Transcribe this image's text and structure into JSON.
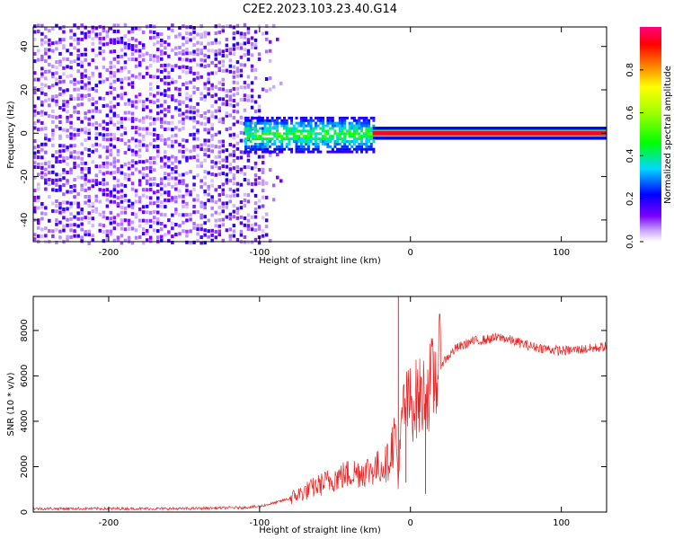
{
  "figure": {
    "title": "C2E2.2023.103.23.40.G14"
  },
  "chart_data": [
    {
      "type": "heatmap",
      "xlabel": "Height of straight line (km)",
      "ylabel": "Frequency (Hz)",
      "xlim": [
        -250,
        130
      ],
      "ylim": [
        -50,
        49
      ],
      "x_ticks": [
        -200,
        -100,
        0,
        100
      ],
      "y_ticks": [
        -40,
        -20,
        0,
        20,
        40
      ],
      "x_tick_labels": [
        "-200",
        "-100",
        "0",
        "100"
      ],
      "y_tick_labels": [
        "-40",
        "-20",
        "0",
        "20",
        "40"
      ],
      "description_regions": [
        {
          "x_range": [
            -250,
            -100
          ],
          "freq_range": [
            -50,
            49
          ],
          "amplitude": [
            0.05,
            0.2
          ]
        },
        {
          "x_range": [
            -110,
            -25
          ],
          "freq_range": [
            -8,
            8
          ],
          "amplitude": [
            0.15,
            0.5
          ]
        },
        {
          "x_range": [
            -25,
            130
          ],
          "freq_range": [
            -1,
            1
          ],
          "amplitude": [
            0.85,
            0.95
          ]
        }
      ],
      "colorbar": {
        "label": "Normalized spectral amplitude",
        "range": [
          0,
          1
        ],
        "ticks": [
          0.0,
          0.2,
          0.4,
          0.6,
          0.8
        ],
        "tick_labels": [
          "0.0",
          "0.2",
          "0.4",
          "0.6",
          "0.8"
        ],
        "colors": [
          "#ffffff",
          "#7b00ff",
          "#0000ff",
          "#00d9ff",
          "#00ff00",
          "#ffff00",
          "#ff8000",
          "#ff0000",
          "#ff0080"
        ]
      }
    },
    {
      "type": "line",
      "xlabel": "Height of straight line (km)",
      "ylabel": "SNR (10 * v/v)",
      "xlim": [
        -250,
        130
      ],
      "ylim": [
        0,
        9500
      ],
      "x_ticks": [
        -200,
        -100,
        0,
        100
      ],
      "y_ticks": [
        0,
        2000,
        4000,
        6000,
        8000
      ],
      "x_tick_labels": [
        "-200",
        "-100",
        "0",
        "100"
      ],
      "y_tick_labels": [
        "0",
        "2000",
        "4000",
        "6000",
        "8000"
      ],
      "color": "#ee2222",
      "series": [
        {
          "x": [
            -250,
            -200,
            -150,
            -110,
            -100,
            -90,
            -80,
            -70,
            -60,
            -50,
            -40,
            -30,
            -20,
            -15,
            -10,
            -8,
            -5,
            0,
            5,
            10,
            15,
            20,
            30,
            40,
            50,
            60,
            70,
            80,
            90,
            100,
            110,
            120,
            130
          ],
          "y": [
            150,
            150,
            150,
            200,
            250,
            400,
            600,
            900,
            1200,
            1500,
            1700,
            1800,
            2000,
            2200,
            3500,
            1500,
            4500,
            4800,
            5000,
            5200,
            5800,
            6500,
            7200,
            7500,
            7600,
            7700,
            7500,
            7300,
            7200,
            7100,
            7150,
            7200,
            7300
          ]
        }
      ],
      "spikes": [
        {
          "x": -8,
          "y": 9500
        },
        {
          "x": -3,
          "y": 1300
        },
        {
          "x": 10,
          "y": 800
        }
      ]
    }
  ]
}
